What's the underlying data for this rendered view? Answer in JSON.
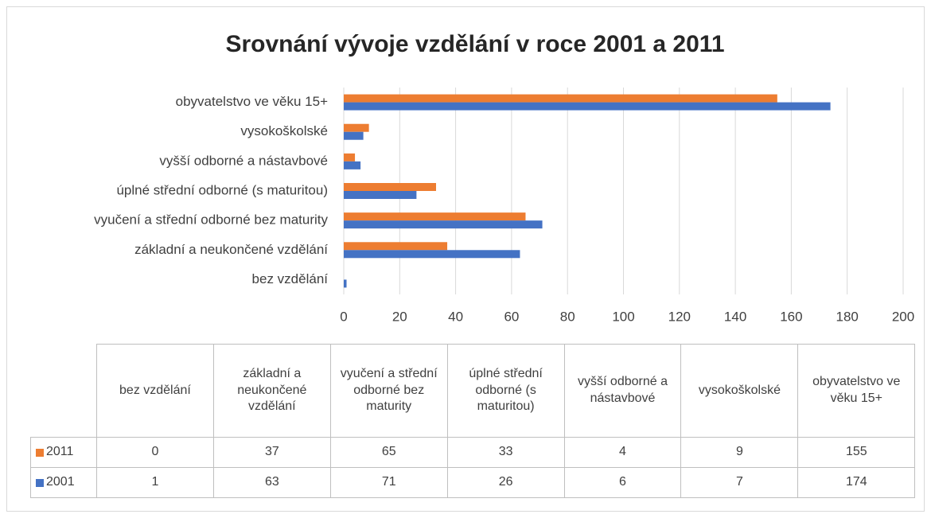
{
  "chart_data": {
    "type": "bar",
    "orientation": "horizontal",
    "title": "Srovnání vývoje vzdělání v roce 2001 a 2011",
    "categories": [
      "bez vzdělání",
      "základní a neukončené vzdělání",
      "vyučení a střední odborné bez maturity",
      "úplné střední odborné (s maturitou)",
      "vyšší odborné a nástavbové",
      "vysokoškolské",
      "obyvatelstvo ve věku 15+"
    ],
    "series": [
      {
        "name": "2011",
        "color": "#ed7d31",
        "values": [
          0,
          37,
          65,
          33,
          4,
          9,
          155
        ]
      },
      {
        "name": "2001",
        "color": "#4472c4",
        "values": [
          1,
          63,
          71,
          26,
          6,
          7,
          174
        ]
      }
    ],
    "xlim": [
      0,
      200
    ],
    "xticks": [
      0,
      20,
      40,
      60,
      80,
      100,
      120,
      140,
      160,
      180,
      200
    ],
    "grid": true,
    "data_table": true
  }
}
